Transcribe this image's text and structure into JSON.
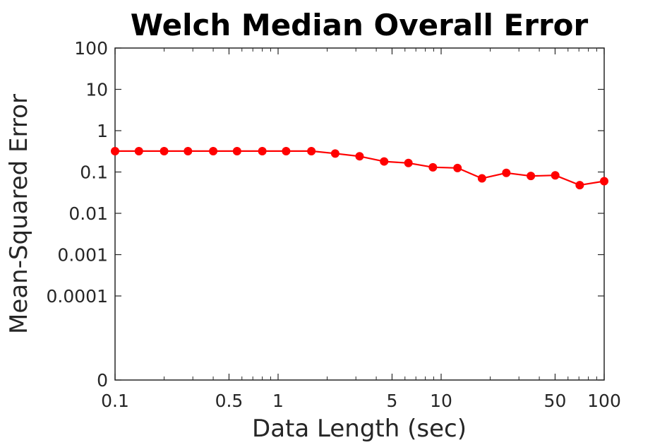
{
  "chart_data": {
    "type": "line",
    "title": "Welch Median Overall Error",
    "xlabel": "Data Length (sec)",
    "ylabel": "Mean-Squared Error",
    "x_scale": "log",
    "y_scale": "log",
    "xlim": [
      0.1,
      100
    ],
    "ylim": [
      0,
      100
    ],
    "grid": false,
    "x_ticks": [
      0.1,
      0.5,
      1,
      5,
      10,
      50,
      100
    ],
    "x_tick_labels": [
      "0.1",
      "0.5",
      "1",
      "5",
      "10",
      "50",
      "100"
    ],
    "y_ticks": [
      0,
      0.0001,
      0.001,
      0.01,
      0.1,
      1,
      10,
      100
    ],
    "y_tick_labels": [
      "0",
      "0.0001",
      "0.001",
      "0.01",
      "0.1",
      "1",
      "10",
      "100"
    ],
    "series": [
      {
        "color": "#ff0000",
        "marker": "circle",
        "x": [
          0.1,
          0.14,
          0.2,
          0.28,
          0.4,
          0.56,
          0.8,
          1.12,
          1.6,
          2.24,
          3.16,
          4.47,
          6.3,
          8.9,
          12.6,
          17.8,
          25.1,
          35.5,
          50.1,
          70.8,
          100
        ],
        "y": [
          0.32,
          0.32,
          0.32,
          0.32,
          0.32,
          0.32,
          0.32,
          0.32,
          0.32,
          0.28,
          0.24,
          0.18,
          0.165,
          0.13,
          0.125,
          0.07,
          0.095,
          0.08,
          0.083,
          0.048,
          0.06
        ]
      }
    ]
  }
}
